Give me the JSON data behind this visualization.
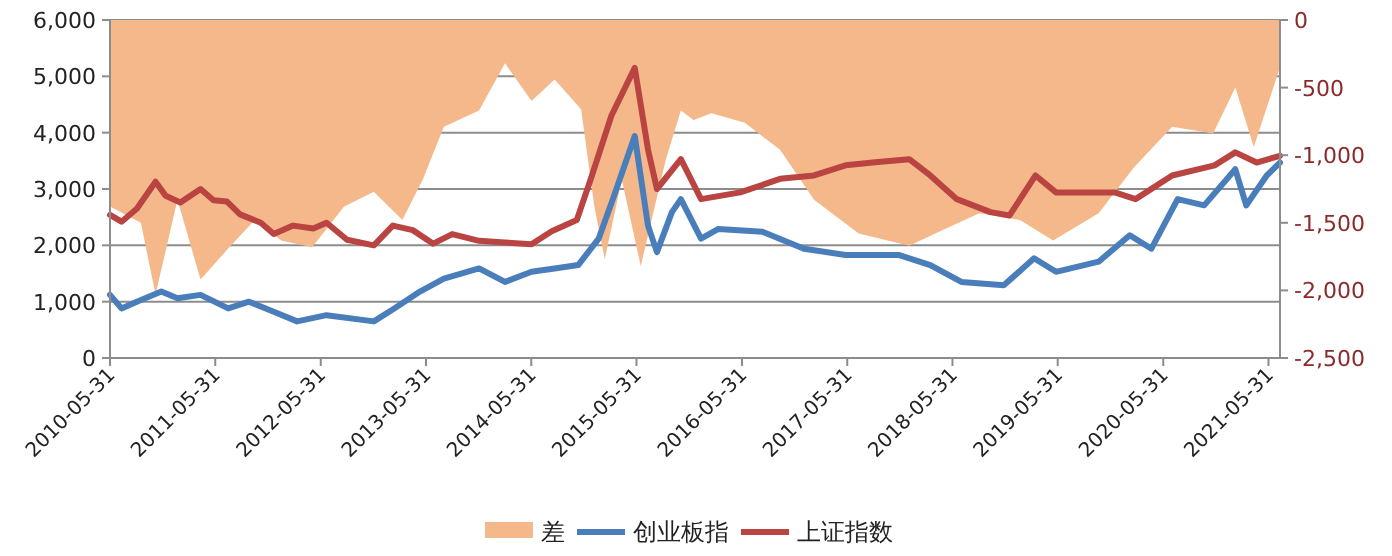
{
  "chart_data": {
    "type": "line",
    "xlim": [
      "2010-05-31",
      "2021-07-10"
    ],
    "xticks": [
      "2010-05-31",
      "2011-05-31",
      "2012-05-31",
      "2013-05-31",
      "2014-05-31",
      "2015-05-31",
      "2016-05-31",
      "2017-05-31",
      "2018-05-31",
      "2019-05-31",
      "2020-05-31",
      "2021-05-31"
    ],
    "ylim": [
      0,
      6000
    ],
    "yticks": [
      0,
      {
        "value": 1000,
        "label": "1,000"
      },
      {
        "value": 2000,
        "label": "2,000"
      },
      {
        "value": 3000,
        "label": "3,000"
      },
      {
        "value": 4000,
        "label": "4,000"
      },
      {
        "value": 5000,
        "label": "5,000"
      },
      {
        "value": 6000,
        "label": "6,000"
      }
    ],
    "y2lim": [
      -2500,
      0
    ],
    "y2ticks": [
      {
        "value": -2500,
        "label": "-2,500"
      },
      {
        "value": -2000,
        "label": "-2,000"
      },
      {
        "value": -1500,
        "label": "-1,500"
      },
      {
        "value": -1000,
        "label": "-1,000"
      },
      {
        "value": -500,
        "label": "-500"
      },
      0
    ],
    "grid": "y",
    "legend": "bottom",
    "series": [
      {
        "name": "差",
        "type": "area",
        "axis": "y2",
        "color": "#f5b88a",
        "x": [
          "2010-05-31",
          "2010-09-15",
          "2010-11-05",
          "2011-01-20",
          "2011-04-10",
          "2011-07-15",
          "2011-10-15",
          "2012-01-15",
          "2012-05-01",
          "2012-08-20",
          "2012-12-01",
          "2013-03-10",
          "2013-05-20",
          "2013-08-01",
          "2013-12-01",
          "2014-03-01",
          "2014-06-01",
          "2014-08-20",
          "2014-11-20",
          "2015-01-05",
          "2015-02-10",
          "2015-04-10",
          "2015-06-15",
          "2015-09-10",
          "2015-11-01",
          "2015-12-15",
          "2016-02-15",
          "2016-06-10",
          "2016-10-10",
          "2017-02-05",
          "2017-07-10",
          "2018-01-01",
          "2018-04-01",
          "2018-09-01",
          "2019-01-20",
          "2019-05-15",
          "2019-10-20",
          "2020-02-20",
          "2020-07-01",
          "2020-11-20",
          "2021-02-05",
          "2021-04-10",
          "2021-07-10"
        ],
        "values": [
          -1380,
          -1500,
          -2030,
          -1330,
          -1920,
          -1690,
          -1480,
          -1630,
          -1680,
          -1380,
          -1270,
          -1480,
          -1180,
          -790,
          -670,
          -320,
          -600,
          -440,
          -660,
          -1380,
          -1770,
          -1180,
          -1820,
          -1030,
          -670,
          -740,
          -690,
          -760,
          -960,
          -1330,
          -1580,
          -1670,
          -1580,
          -1430,
          -1480,
          -1630,
          -1430,
          -1090,
          -790,
          -840,
          -500,
          -940,
          -350
        ]
      },
      {
        "name": "创业板指",
        "color": "#4a7ebb",
        "x": [
          "2010-05-31",
          "2010-07-10",
          "2010-09-01",
          "2010-11-25",
          "2011-01-20",
          "2011-04-10",
          "2011-07-15",
          "2011-09-25",
          "2011-12-20",
          "2012-03-10",
          "2012-06-20",
          "2012-12-01",
          "2013-02-10",
          "2013-05-10",
          "2013-08-01",
          "2013-12-01",
          "2014-03-01",
          "2014-06-01",
          "2014-08-20",
          "2014-11-10",
          "2015-01-20",
          "2015-03-10",
          "2015-05-25",
          "2015-07-10",
          "2015-08-10",
          "2015-10-01",
          "2015-11-01",
          "2016-01-10",
          "2016-03-10",
          "2016-08-10",
          "2017-01-01",
          "2017-05-25",
          "2017-11-25",
          "2018-03-15",
          "2018-07-01",
          "2018-11-25",
          "2019-03-10",
          "2019-05-25",
          "2019-10-20",
          "2020-02-05",
          "2020-04-20",
          "2020-07-20",
          "2020-10-20",
          "2021-02-05",
          "2021-03-15",
          "2021-05-25",
          "2021-07-10"
        ],
        "values": [
          1120,
          880,
          1000,
          1180,
          1060,
          1120,
          880,
          1000,
          820,
          650,
          760,
          650,
          880,
          1180,
          1410,
          1590,
          1350,
          1530,
          1590,
          1650,
          2120,
          2820,
          3940,
          2350,
          1880,
          2590,
          2820,
          2120,
          2290,
          2240,
          1940,
          1830,
          1830,
          1650,
          1350,
          1290,
          1770,
          1530,
          1710,
          2180,
          1940,
          2820,
          2710,
          3350,
          2710,
          3240,
          3470
        ]
      },
      {
        "name": "上证指数",
        "color": "#b94441",
        "x": [
          "2010-05-31",
          "2010-07-10",
          "2010-09-01",
          "2010-11-05",
          "2010-12-10",
          "2011-01-30",
          "2011-04-10",
          "2011-05-25",
          "2011-07-10",
          "2011-08-25",
          "2011-11-05",
          "2011-12-20",
          "2012-02-25",
          "2012-05-05",
          "2012-06-20",
          "2012-08-30",
          "2012-12-01",
          "2013-02-05",
          "2013-04-15",
          "2013-06-25",
          "2013-08-30",
          "2013-12-01",
          "2014-03-01",
          "2014-06-01",
          "2014-08-10",
          "2014-11-05",
          "2014-12-25",
          "2015-03-05",
          "2015-05-25",
          "2015-07-10",
          "2015-08-10",
          "2015-11-01",
          "2016-01-10",
          "2016-05-25",
          "2016-10-10",
          "2017-02-05",
          "2017-05-25",
          "2017-09-15",
          "2018-01-01",
          "2018-03-15",
          "2018-06-15",
          "2018-10-10",
          "2018-12-15",
          "2019-03-15",
          "2019-05-25",
          "2019-09-15",
          "2019-12-15",
          "2020-02-25",
          "2020-07-01",
          "2020-11-25",
          "2021-02-05",
          "2021-04-20",
          "2021-07-10"
        ],
        "values": [
          2540,
          2420,
          2650,
          3130,
          2880,
          2760,
          3000,
          2800,
          2780,
          2550,
          2400,
          2200,
          2350,
          2300,
          2400,
          2100,
          2000,
          2350,
          2270,
          2030,
          2200,
          2080,
          2050,
          2020,
          2250,
          2450,
          3200,
          4300,
          5150,
          3700,
          3000,
          3530,
          2820,
          2940,
          3180,
          3240,
          3420,
          3480,
          3530,
          3240,
          2820,
          2590,
          2530,
          3240,
          2940,
          2940,
          2940,
          2820,
          3240,
          3420,
          3650,
          3470,
          3590
        ]
      }
    ]
  }
}
